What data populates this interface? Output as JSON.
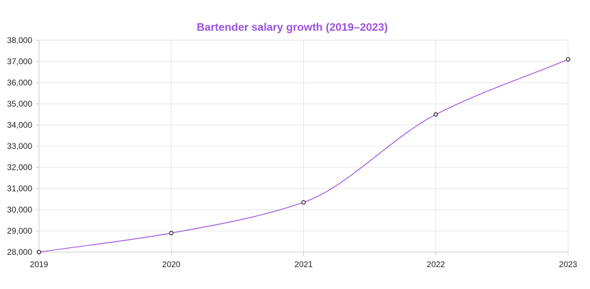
{
  "chart_data": {
    "type": "line",
    "title": "Bartender salary growth (2019–2023)",
    "xlabel": "",
    "ylabel": "",
    "x": [
      "2019",
      "2020",
      "2021",
      "2022",
      "2023"
    ],
    "series": [
      {
        "values": [
          28000,
          28900,
          30350,
          34500,
          37100
        ]
      }
    ],
    "ylim": [
      28000,
      38000
    ],
    "y_ticks": [
      28000,
      29000,
      30000,
      31000,
      32000,
      33000,
      34000,
      35000,
      36000,
      37000,
      38000
    ],
    "grid": true,
    "smooth": true,
    "legend": "none",
    "colors": {
      "title": "#9b51e0",
      "line": "#9b51e0",
      "point_stroke": "#222222",
      "point_fill": "#ffffff",
      "grid": "#e6e6e6",
      "axis": "#cccccc"
    }
  }
}
